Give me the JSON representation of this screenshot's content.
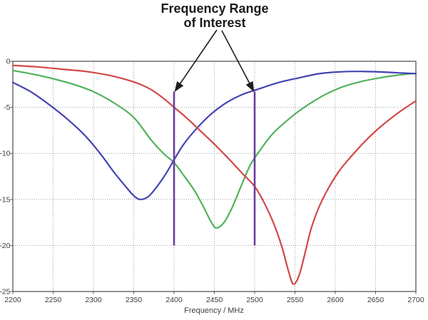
{
  "chart_data": {
    "type": "line",
    "xlabel": "Frequency / MHz",
    "ylabel": "",
    "xlim": [
      2200,
      2700
    ],
    "ylim": [
      -25,
      0
    ],
    "x_ticks": [
      2200,
      2250,
      2300,
      2350,
      2400,
      2450,
      2500,
      2550,
      2600,
      2650,
      2700
    ],
    "y_ticks": [
      0,
      -5,
      -10,
      -15,
      -20,
      -25
    ],
    "grid": true,
    "legend": false,
    "annotation": {
      "line1": "Frequency Range",
      "line2": "of Interest",
      "points_to_mhz": [
        2400,
        2500
      ]
    },
    "range_markers": {
      "x_values": [
        2400,
        2500
      ],
      "y_top": -3.3,
      "y_bottom": -20,
      "color": "#6a3d9e"
    },
    "series": [
      {
        "name": "green-trace",
        "color": "#52b25c",
        "min_point": [
          2453,
          -18.1
        ],
        "points": [
          [
            2200,
            -1.0
          ],
          [
            2225,
            -1.4
          ],
          [
            2250,
            -1.9
          ],
          [
            2275,
            -2.5
          ],
          [
            2300,
            -3.3
          ],
          [
            2325,
            -4.5
          ],
          [
            2350,
            -6.1
          ],
          [
            2372,
            -8.6
          ],
          [
            2388,
            -10.1
          ],
          [
            2400,
            -11.0
          ],
          [
            2412,
            -12.4
          ],
          [
            2425,
            -14.0
          ],
          [
            2437,
            -15.9
          ],
          [
            2447,
            -17.6
          ],
          [
            2453,
            -18.1
          ],
          [
            2462,
            -17.5
          ],
          [
            2472,
            -15.9
          ],
          [
            2483,
            -13.6
          ],
          [
            2495,
            -11.2
          ],
          [
            2508,
            -9.5
          ],
          [
            2522,
            -7.9
          ],
          [
            2538,
            -6.6
          ],
          [
            2555,
            -5.4
          ],
          [
            2572,
            -4.4
          ],
          [
            2590,
            -3.5
          ],
          [
            2610,
            -2.75
          ],
          [
            2632,
            -2.2
          ],
          [
            2655,
            -1.8
          ],
          [
            2678,
            -1.5
          ],
          [
            2700,
            -1.3
          ]
        ]
      },
      {
        "name": "blue-trace",
        "color": "#4343b2",
        "min_point": [
          2358,
          -15.0
        ],
        "points": [
          [
            2200,
            -2.3
          ],
          [
            2222,
            -3.3
          ],
          [
            2245,
            -4.7
          ],
          [
            2268,
            -6.3
          ],
          [
            2290,
            -8.1
          ],
          [
            2310,
            -10.2
          ],
          [
            2325,
            -12.0
          ],
          [
            2340,
            -13.6
          ],
          [
            2350,
            -14.6
          ],
          [
            2358,
            -15.0
          ],
          [
            2368,
            -14.7
          ],
          [
            2378,
            -13.7
          ],
          [
            2390,
            -12.2
          ],
          [
            2400,
            -10.7
          ],
          [
            2412,
            -9.0
          ],
          [
            2428,
            -7.3
          ],
          [
            2445,
            -5.8
          ],
          [
            2465,
            -4.5
          ],
          [
            2485,
            -3.6
          ],
          [
            2505,
            -3.0
          ],
          [
            2530,
            -2.3
          ],
          [
            2555,
            -1.8
          ],
          [
            2580,
            -1.35
          ],
          [
            2605,
            -1.15
          ],
          [
            2630,
            -1.1
          ],
          [
            2655,
            -1.15
          ],
          [
            2678,
            -1.25
          ],
          [
            2700,
            -1.35
          ]
        ]
      },
      {
        "name": "red-trace",
        "color": "#d24848",
        "min_point": [
          2548,
          -24.2
        ],
        "points": [
          [
            2200,
            -0.45
          ],
          [
            2230,
            -0.6
          ],
          [
            2260,
            -0.85
          ],
          [
            2290,
            -1.1
          ],
          [
            2315,
            -1.45
          ],
          [
            2335,
            -1.85
          ],
          [
            2355,
            -2.4
          ],
          [
            2372,
            -3.1
          ],
          [
            2388,
            -4.1
          ],
          [
            2400,
            -5.0
          ],
          [
            2415,
            -6.1
          ],
          [
            2432,
            -7.5
          ],
          [
            2450,
            -9.0
          ],
          [
            2468,
            -10.6
          ],
          [
            2485,
            -12.2
          ],
          [
            2500,
            -13.6
          ],
          [
            2512,
            -15.4
          ],
          [
            2524,
            -17.7
          ],
          [
            2534,
            -20.2
          ],
          [
            2542,
            -22.8
          ],
          [
            2548,
            -24.2
          ],
          [
            2555,
            -23.3
          ],
          [
            2562,
            -21.0
          ],
          [
            2570,
            -18.2
          ],
          [
            2580,
            -15.8
          ],
          [
            2592,
            -13.7
          ],
          [
            2605,
            -11.9
          ],
          [
            2620,
            -10.3
          ],
          [
            2638,
            -8.6
          ],
          [
            2655,
            -7.2
          ],
          [
            2678,
            -5.6
          ],
          [
            2700,
            -4.3
          ]
        ]
      }
    ],
    "colors": {
      "background": "#ffffff",
      "frame": "#565656",
      "grid": "#9c9c9c",
      "tick_text": "#3c3c3c",
      "title_text": "#1b1b1b",
      "arrow": "#1f1f1f"
    }
  }
}
